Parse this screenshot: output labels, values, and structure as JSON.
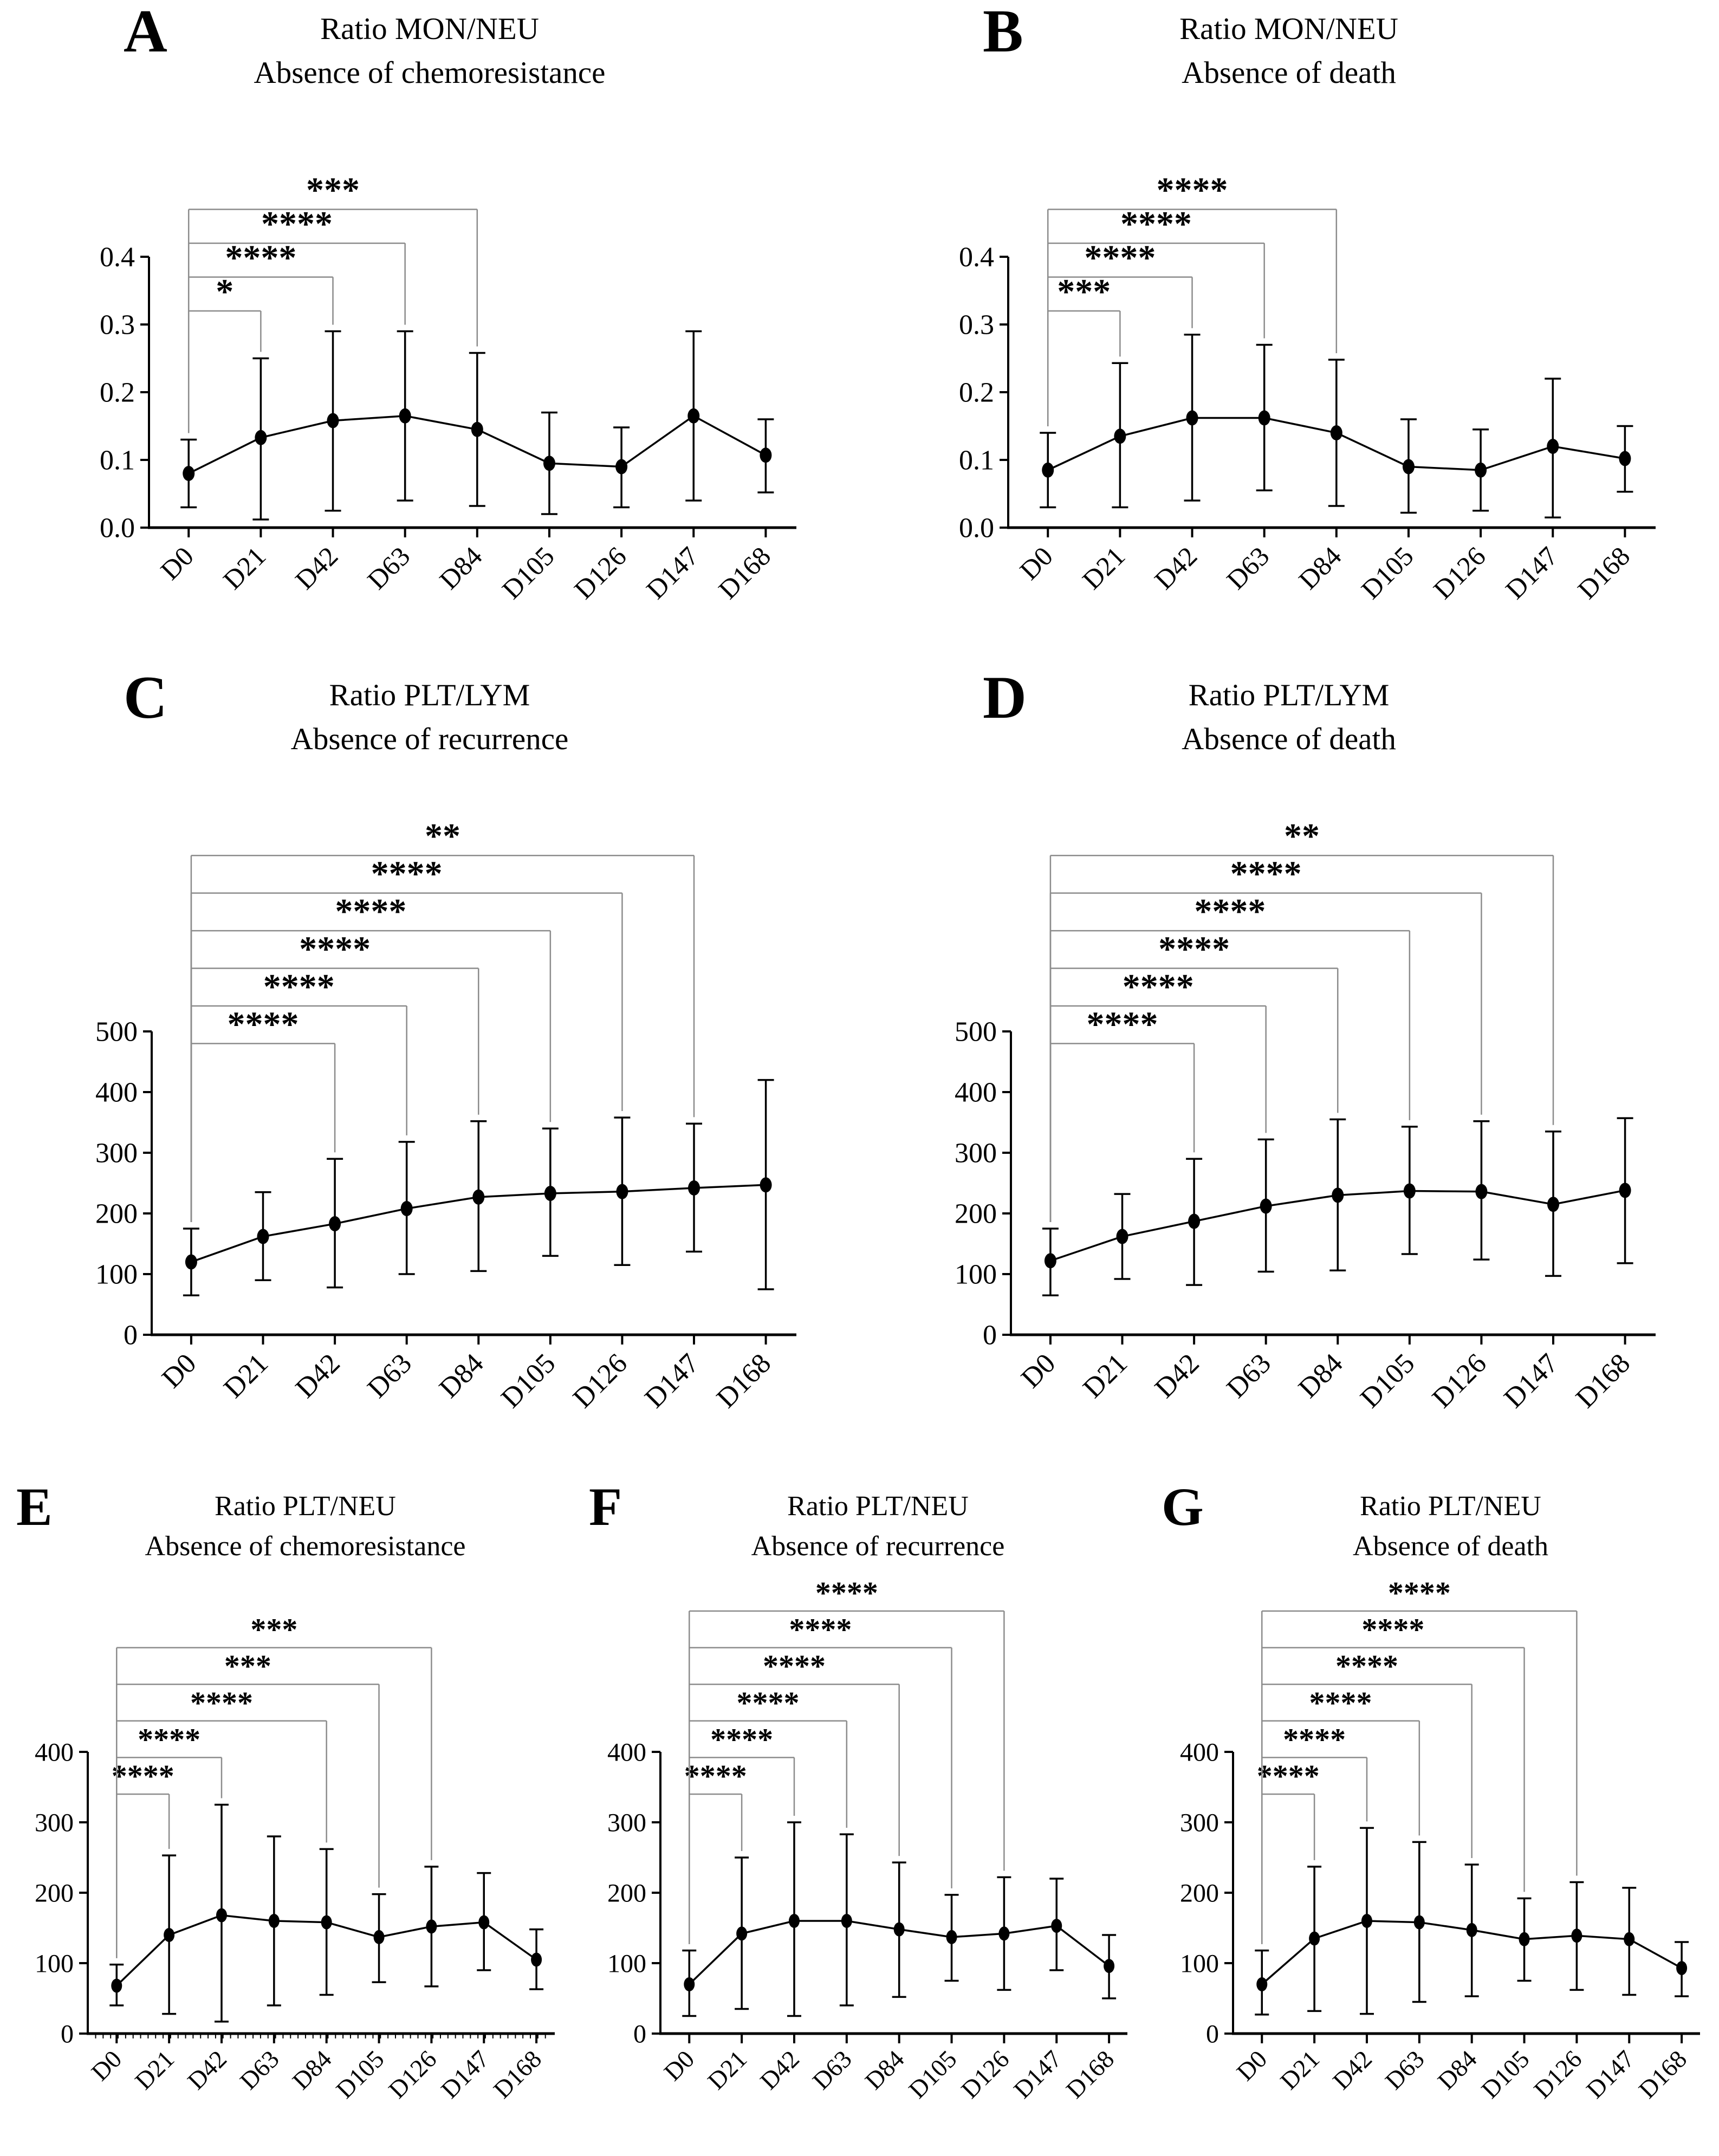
{
  "figure": {
    "background": "#ffffff",
    "axis_color": "#000000",
    "line_color": "#000000",
    "marker_color": "#000000",
    "bracket_color": "#8c8c8c",
    "bracket_label_color": "#000000"
  },
  "chart_data": [
    {
      "type": "line",
      "panel": "A",
      "title": "Ratio MON/NEU",
      "subtitle": "Absence of chemoresistance",
      "categories": [
        "D0",
        "D21",
        "D42",
        "D63",
        "D84",
        "D105",
        "D126",
        "D147",
        "D168"
      ],
      "values": [
        0.08,
        0.133,
        0.158,
        0.165,
        0.145,
        0.095,
        0.09,
        0.165,
        0.107
      ],
      "err_low": [
        0.03,
        0.012,
        0.025,
        0.04,
        0.032,
        0.02,
        0.03,
        0.04,
        0.052
      ],
      "err_high": [
        0.13,
        0.25,
        0.29,
        0.29,
        0.258,
        0.17,
        0.148,
        0.29,
        0.16
      ],
      "ylim": [
        0,
        0.4
      ],
      "yticks": [
        0,
        0.1,
        0.2,
        0.3,
        0.4
      ],
      "ytick_labels": [
        "0.0",
        "0.1",
        "0.2",
        "0.3",
        "0.4"
      ],
      "xlabel": "",
      "ylabel": "",
      "grid": false,
      "legend": "none",
      "marker": "filled-ellipse",
      "significance_brackets": [
        {
          "from": "D0",
          "to": "D21",
          "label": "*"
        },
        {
          "from": "D0",
          "to": "D42",
          "label": "****"
        },
        {
          "from": "D0",
          "to": "D63",
          "label": "****"
        },
        {
          "from": "D0",
          "to": "D84",
          "label": "***"
        }
      ]
    },
    {
      "type": "line",
      "panel": "B",
      "title": "Ratio MON/NEU",
      "subtitle": "Absence of death",
      "categories": [
        "D0",
        "D21",
        "D42",
        "D63",
        "D84",
        "D105",
        "D126",
        "D147",
        "D168"
      ],
      "values": [
        0.085,
        0.135,
        0.162,
        0.162,
        0.14,
        0.09,
        0.085,
        0.12,
        0.102
      ],
      "err_low": [
        0.03,
        0.03,
        0.04,
        0.055,
        0.032,
        0.022,
        0.025,
        0.015,
        0.053
      ],
      "err_high": [
        0.14,
        0.243,
        0.285,
        0.27,
        0.248,
        0.16,
        0.145,
        0.22,
        0.15
      ],
      "ylim": [
        0,
        0.4
      ],
      "yticks": [
        0,
        0.1,
        0.2,
        0.3,
        0.4
      ],
      "ytick_labels": [
        "0.0",
        "0.1",
        "0.2",
        "0.3",
        "0.4"
      ],
      "xlabel": "",
      "ylabel": "",
      "grid": false,
      "legend": "none",
      "marker": "filled-ellipse",
      "significance_brackets": [
        {
          "from": "D0",
          "to": "D21",
          "label": "***"
        },
        {
          "from": "D0",
          "to": "D42",
          "label": "****"
        },
        {
          "from": "D0",
          "to": "D63",
          "label": "****"
        },
        {
          "from": "D0",
          "to": "D84",
          "label": "****"
        }
      ]
    },
    {
      "type": "line",
      "panel": "C",
      "title": "Ratio PLT/LYM",
      "subtitle": "Absence of recurrence",
      "categories": [
        "D0",
        "D21",
        "D42",
        "D63",
        "D84",
        "D105",
        "D126",
        "D147",
        "D168"
      ],
      "values": [
        120,
        162,
        183,
        208,
        227,
        233,
        236,
        242,
        247
      ],
      "err_low": [
        65,
        90,
        78,
        100,
        105,
        130,
        115,
        137,
        75
      ],
      "err_high": [
        175,
        235,
        290,
        318,
        352,
        340,
        358,
        348,
        420
      ],
      "ylim": [
        0,
        500
      ],
      "yticks": [
        0,
        100,
        200,
        300,
        400,
        500
      ],
      "ytick_labels": [
        "0",
        "100",
        "200",
        "300",
        "400",
        "500"
      ],
      "xlabel": "",
      "ylabel": "",
      "grid": false,
      "legend": "none",
      "marker": "filled-ellipse",
      "significance_brackets": [
        {
          "from": "D0",
          "to": "D42",
          "label": "****"
        },
        {
          "from": "D0",
          "to": "D63",
          "label": "****"
        },
        {
          "from": "D0",
          "to": "D84",
          "label": "****"
        },
        {
          "from": "D0",
          "to": "D105",
          "label": "****"
        },
        {
          "from": "D0",
          "to": "D126",
          "label": "****"
        },
        {
          "from": "D0",
          "to": "D147",
          "label": "**"
        }
      ]
    },
    {
      "type": "line",
      "panel": "D",
      "title": "Ratio PLT/LYM",
      "subtitle": "Absence of death",
      "categories": [
        "D0",
        "D21",
        "D42",
        "D63",
        "D84",
        "D105",
        "D126",
        "D147",
        "D168"
      ],
      "values": [
        122,
        162,
        187,
        212,
        230,
        237,
        236,
        215,
        238
      ],
      "err_low": [
        65,
        92,
        82,
        104,
        106,
        133,
        124,
        97,
        118
      ],
      "err_high": [
        175,
        232,
        290,
        322,
        355,
        343,
        352,
        335,
        357
      ],
      "ylim": [
        0,
        500
      ],
      "yticks": [
        0,
        100,
        200,
        300,
        400,
        500
      ],
      "ytick_labels": [
        "0",
        "100",
        "200",
        "300",
        "400",
        "500"
      ],
      "xlabel": "",
      "ylabel": "",
      "grid": false,
      "legend": "none",
      "marker": "filled-ellipse",
      "significance_brackets": [
        {
          "from": "D0",
          "to": "D42",
          "label": "****"
        },
        {
          "from": "D0",
          "to": "D63",
          "label": "****"
        },
        {
          "from": "D0",
          "to": "D84",
          "label": "****"
        },
        {
          "from": "D0",
          "to": "D105",
          "label": "****"
        },
        {
          "from": "D0",
          "to": "D126",
          "label": "****"
        },
        {
          "from": "D0",
          "to": "D147",
          "label": "**"
        }
      ]
    },
    {
      "type": "line",
      "panel": "E",
      "title": "Ratio PLT/NEU",
      "subtitle": "Absence of chemoresistance",
      "categories": [
        "D0",
        "D21",
        "D42",
        "D63",
        "D84",
        "D105",
        "D126",
        "D147",
        "D168"
      ],
      "values": [
        68,
        140,
        168,
        160,
        158,
        137,
        152,
        158,
        105
      ],
      "err_low": [
        40,
        28,
        17,
        40,
        55,
        73,
        67,
        90,
        63
      ],
      "err_high": [
        98,
        253,
        325,
        280,
        262,
        198,
        237,
        228,
        148
      ],
      "ylim": [
        0,
        400
      ],
      "yticks": [
        0,
        100,
        200,
        300,
        400
      ],
      "ytick_labels": [
        "0",
        "100",
        "200",
        "300",
        "400"
      ],
      "xlabel": "",
      "ylabel": "",
      "grid": false,
      "legend": "none",
      "minor_x_ticks": true,
      "marker": "filled-ellipse",
      "significance_brackets": [
        {
          "from": "D0",
          "to": "D21",
          "label": "****"
        },
        {
          "from": "D0",
          "to": "D42",
          "label": "****"
        },
        {
          "from": "D0",
          "to": "D84",
          "label": "****"
        },
        {
          "from": "D0",
          "to": "D105",
          "label": "***"
        },
        {
          "from": "D0",
          "to": "D126",
          "label": "***"
        }
      ]
    },
    {
      "type": "line",
      "panel": "F",
      "title": "Ratio PLT/NEU",
      "subtitle": "Absence of recurrence",
      "categories": [
        "D0",
        "D21",
        "D42",
        "D63",
        "D84",
        "D105",
        "D126",
        "D147",
        "D168"
      ],
      "values": [
        70,
        142,
        160,
        160,
        148,
        137,
        142,
        153,
        96
      ],
      "err_low": [
        25,
        35,
        25,
        40,
        52,
        75,
        62,
        90,
        50
      ],
      "err_high": [
        118,
        250,
        300,
        283,
        243,
        197,
        222,
        220,
        140
      ],
      "ylim": [
        0,
        400
      ],
      "yticks": [
        0,
        100,
        200,
        300,
        400
      ],
      "ytick_labels": [
        "0",
        "100",
        "200",
        "300",
        "400"
      ],
      "xlabel": "",
      "ylabel": "",
      "grid": false,
      "legend": "none",
      "marker": "filled-ellipse",
      "significance_brackets": [
        {
          "from": "D0",
          "to": "D21",
          "label": "****"
        },
        {
          "from": "D0",
          "to": "D42",
          "label": "****"
        },
        {
          "from": "D0",
          "to": "D63",
          "label": "****"
        },
        {
          "from": "D0",
          "to": "D84",
          "label": "****"
        },
        {
          "from": "D0",
          "to": "D105",
          "label": "****"
        },
        {
          "from": "D0",
          "to": "D126",
          "label": "****"
        }
      ]
    },
    {
      "type": "line",
      "panel": "G",
      "title": "Ratio PLT/NEU",
      "subtitle": "Absence of death",
      "categories": [
        "D0",
        "D21",
        "D42",
        "D63",
        "D84",
        "D105",
        "D126",
        "D147",
        "D168"
      ],
      "values": [
        70,
        135,
        160,
        158,
        147,
        134,
        139,
        134,
        93
      ],
      "err_low": [
        27,
        32,
        28,
        45,
        53,
        75,
        62,
        55,
        53
      ],
      "err_high": [
        118,
        237,
        292,
        272,
        240,
        192,
        215,
        207,
        130
      ],
      "ylim": [
        0,
        400
      ],
      "yticks": [
        0,
        100,
        200,
        300,
        400
      ],
      "ytick_labels": [
        "0",
        "100",
        "200",
        "300",
        "400"
      ],
      "xlabel": "",
      "ylabel": "",
      "grid": false,
      "legend": "none",
      "marker": "filled-ellipse",
      "significance_brackets": [
        {
          "from": "D0",
          "to": "D21",
          "label": "****"
        },
        {
          "from": "D0",
          "to": "D42",
          "label": "****"
        },
        {
          "from": "D0",
          "to": "D63",
          "label": "****"
        },
        {
          "from": "D0",
          "to": "D84",
          "label": "****"
        },
        {
          "from": "D0",
          "to": "D105",
          "label": "****"
        },
        {
          "from": "D0",
          "to": "D126",
          "label": "****"
        }
      ]
    }
  ]
}
